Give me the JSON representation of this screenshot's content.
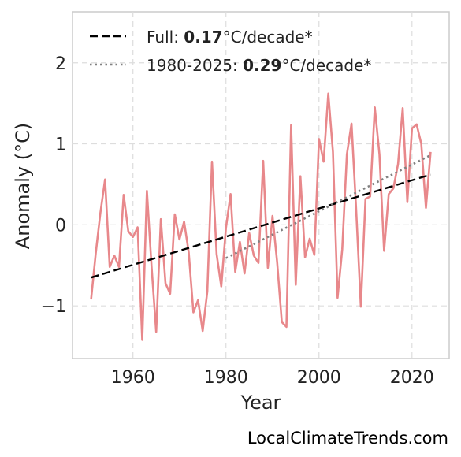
{
  "chart_data": {
    "type": "line",
    "xlabel": "Year",
    "ylabel": "Anomaly (°C)",
    "xlim": [
      1947,
      2028
    ],
    "ylim": [
      -1.65,
      2.63
    ],
    "xticks": [
      1960,
      1980,
      2000,
      2020
    ],
    "yticks": [
      2,
      1,
      0,
      -1
    ],
    "ytick_labels": [
      "2",
      "1",
      "0",
      "−1"
    ],
    "grid": true,
    "legend_position": "top-left",
    "colors": {
      "series": "#e8888b",
      "full_trend": "#000000",
      "recent_trend": "#808080"
    },
    "series": [
      {
        "x": [
          1951,
          1952,
          1953,
          1954,
          1955,
          1956,
          1957,
          1958,
          1959,
          1960,
          1961,
          1962,
          1963,
          1964,
          1965,
          1966,
          1967,
          1968,
          1969,
          1970,
          1971,
          1972,
          1973,
          1974,
          1975,
          1976,
          1977,
          1978,
          1979,
          1980,
          1981,
          1982,
          1983,
          1984,
          1985,
          1986,
          1987,
          1988,
          1989,
          1990,
          1991,
          1992,
          1993,
          1994,
          1995,
          1996,
          1997,
          1998,
          1999,
          2000,
          2001,
          2002,
          2003,
          2004,
          2005,
          2006,
          2007,
          2008,
          2009,
          2010,
          2011,
          2012,
          2013,
          2014,
          2015,
          2016,
          2017,
          2018,
          2019,
          2020,
          2021,
          2022,
          2023,
          2024
        ],
        "y": [
          -0.92,
          -0.35,
          0.15,
          0.56,
          -0.52,
          -0.38,
          -0.52,
          0.37,
          -0.08,
          -0.15,
          -0.03,
          -1.42,
          0.42,
          -0.51,
          -1.32,
          0.07,
          -0.72,
          -0.85,
          0.13,
          -0.18,
          0.04,
          -0.34,
          -1.08,
          -0.93,
          -1.31,
          -0.82,
          0.78,
          -0.36,
          -0.76,
          -0.04,
          0.38,
          -0.58,
          -0.21,
          -0.6,
          -0.1,
          -0.38,
          -0.47,
          0.79,
          -0.53,
          0.11,
          -0.46,
          -1.2,
          -1.26,
          1.23,
          -0.74,
          0.6,
          -0.4,
          -0.17,
          -0.37,
          1.06,
          0.78,
          1.62,
          0.9,
          -0.9,
          -0.3,
          0.87,
          1.25,
          0.18,
          -1.01,
          0.32,
          0.35,
          1.45,
          0.87,
          -0.32,
          0.38,
          0.45,
          0.75,
          1.44,
          0.28,
          1.19,
          1.24,
          1.0,
          0.21,
          0.9
        ]
      }
    ],
    "trends": [
      {
        "style": "dashed",
        "x": [
          1951,
          2024
        ],
        "y": [
          -0.65,
          0.62
        ]
      },
      {
        "style": "dotted",
        "x": [
          1980,
          2024
        ],
        "y": [
          -0.41,
          0.86
        ]
      }
    ],
    "legend": [
      {
        "prefix": "Full: ",
        "value": "0.17",
        "suffix": "°C/decade*"
      },
      {
        "prefix": "1980-2025: ",
        "value": "0.29",
        "suffix": "°C/decade*"
      }
    ]
  },
  "credit": "LocalClimateTrends.com"
}
